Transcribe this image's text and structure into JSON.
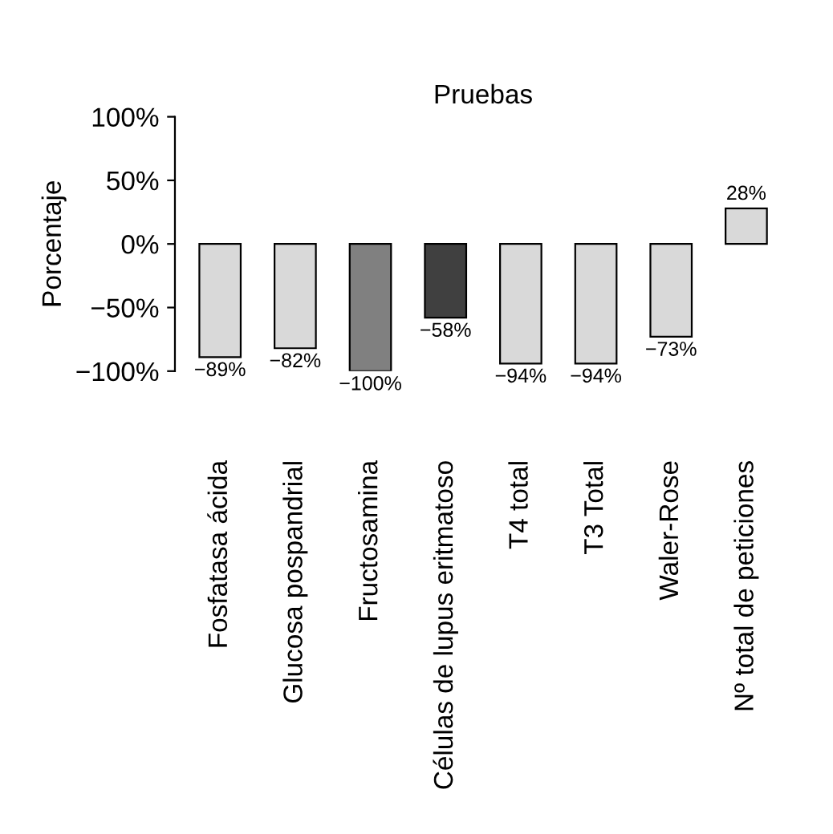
{
  "chart_data": {
    "type": "bar",
    "title": "Pruebas",
    "ylabel": "Porcentaje",
    "categories": [
      "Fosfatasa ácida",
      "Glucosa pospandrial",
      "Fructosamina",
      "Células de lupus eritmatoso",
      "T4 total",
      "T3 Total",
      "Waler-Rose",
      "Nº total de peticiones"
    ],
    "values": [
      -89,
      -82,
      -100,
      -58,
      -94,
      -94,
      -73,
      28
    ],
    "colors": [
      "#d9d9d9",
      "#d9d9d9",
      "#808080",
      "#404040",
      "#d9d9d9",
      "#d9d9d9",
      "#d9d9d9",
      "#d9d9d9"
    ],
    "value_labels": [
      "−89%",
      "−82%",
      "−100%",
      "−58%",
      "−94%",
      "−94%",
      "−73%",
      "28%"
    ],
    "ylim": [
      -100,
      100
    ],
    "yticks": [
      {
        "value": -100,
        "label": "−100%"
      },
      {
        "value": -50,
        "label": "−50%"
      },
      {
        "value": 0,
        "label": "0%"
      },
      {
        "value": 50,
        "label": "50%"
      },
      {
        "value": 100,
        "label": "100%"
      }
    ],
    "grid": false,
    "legend": false
  }
}
